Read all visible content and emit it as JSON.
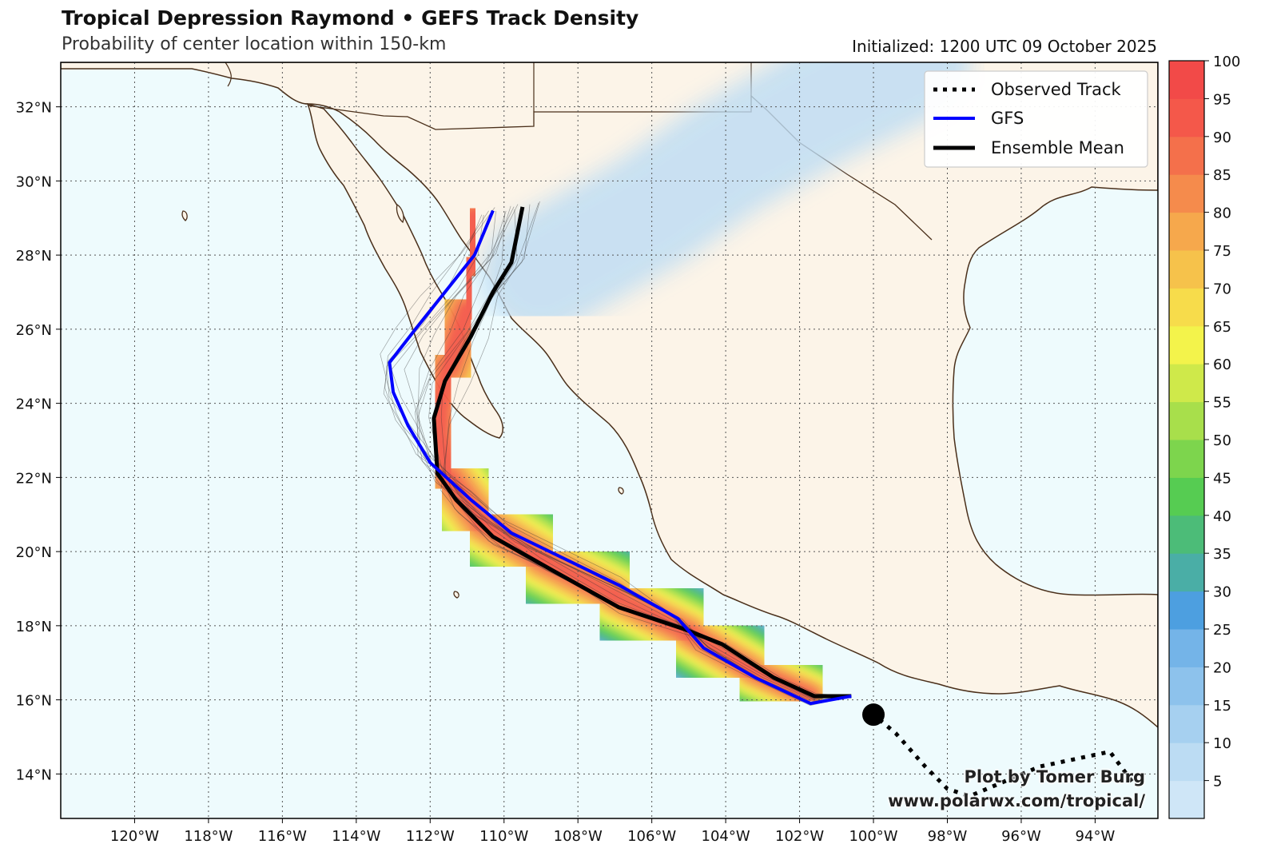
{
  "header": {
    "title": "Tropical Depression Raymond • GEFS Track Density",
    "subtitle": "Probability of center location within 150-km",
    "initialized": "Initialized: 1200 UTC 09 October 2025"
  },
  "credit": {
    "line1": "Plot by Tomer Burg",
    "line2": "www.polarwx.com/tropical/"
  },
  "map": {
    "lon_range": [
      -122,
      -92.3
    ],
    "lat_range": [
      12.8,
      33.2
    ],
    "lon_ticks": [
      {
        "value": -120,
        "label": "120°W"
      },
      {
        "value": -118,
        "label": "118°W"
      },
      {
        "value": -116,
        "label": "116°W"
      },
      {
        "value": -114,
        "label": "114°W"
      },
      {
        "value": -112,
        "label": "112°W"
      },
      {
        "value": -110,
        "label": "110°W"
      },
      {
        "value": -108,
        "label": "108°W"
      },
      {
        "value": -106,
        "label": "106°W"
      },
      {
        "value": -104,
        "label": "104°W"
      },
      {
        "value": -102,
        "label": "102°W"
      },
      {
        "value": -100,
        "label": "100°W"
      },
      {
        "value": -98,
        "label": "98°W"
      },
      {
        "value": -96,
        "label": "96°W"
      },
      {
        "value": -94,
        "label": "94°W"
      }
    ],
    "lat_ticks": [
      {
        "value": 14,
        "label": "14°N"
      },
      {
        "value": 16,
        "label": "16°N"
      },
      {
        "value": 18,
        "label": "18°N"
      },
      {
        "value": 20,
        "label": "20°N"
      },
      {
        "value": 22,
        "label": "22°N"
      },
      {
        "value": 24,
        "label": "24°N"
      },
      {
        "value": 26,
        "label": "26°N"
      },
      {
        "value": 28,
        "label": "28°N"
      },
      {
        "value": 30,
        "label": "30°N"
      },
      {
        "value": 32,
        "label": "32°N"
      }
    ],
    "colors": {
      "ocean": "#eefbfd",
      "land": "#fcf4e8",
      "coast": "#4a2f1a",
      "grid": "#555555"
    }
  },
  "legend": {
    "position": "top-right",
    "items": [
      {
        "label": "Observed Track",
        "color": "#000000",
        "style": "dotted"
      },
      {
        "label": "GFS",
        "color": "#0000ff",
        "style": "solid"
      },
      {
        "label": "Ensemble Mean",
        "color": "#000000",
        "style": "solid"
      }
    ]
  },
  "colorbar": {
    "ticks": [
      "5",
      "10",
      "15",
      "20",
      "25",
      "30",
      "35",
      "40",
      "45",
      "50",
      "55",
      "60",
      "65",
      "70",
      "75",
      "80",
      "85",
      "90",
      "95",
      "100"
    ],
    "colors": [
      "#cfe6f7",
      "#bcdcf3",
      "#a6d0f0",
      "#8dc2ec",
      "#74b4e8",
      "#4d9fe0",
      "#4aaea6",
      "#4cbc78",
      "#56cc52",
      "#7dd54d",
      "#a8df4b",
      "#cfe94a",
      "#f3f34b",
      "#f7dc4b",
      "#f6c24b",
      "#f6a84c",
      "#f58b4c",
      "#f4704b",
      "#f4584a",
      "#f24a48"
    ]
  },
  "chart_data": {
    "type": "map-track-density",
    "observed_track": [
      [
        -93.0,
        13.8
      ],
      [
        -93.6,
        14.6
      ],
      [
        -95.5,
        14.2
      ],
      [
        -97.4,
        13.4
      ],
      [
        -98.0,
        13.6
      ],
      [
        -98.6,
        14.2
      ],
      [
        -99.4,
        15.1
      ],
      [
        -100.0,
        15.6
      ]
    ],
    "current_position": [
      -100.0,
      15.6
    ],
    "gfs_track": [
      [
        -100.6,
        16.1
      ],
      [
        -101.7,
        15.9
      ],
      [
        -103.2,
        16.6
      ],
      [
        -104.6,
        17.4
      ],
      [
        -105.3,
        18.2
      ],
      [
        -106.9,
        19.1
      ],
      [
        -109.8,
        20.5
      ],
      [
        -110.9,
        21.4
      ],
      [
        -112.0,
        22.4
      ],
      [
        -112.6,
        23.4
      ],
      [
        -113.0,
        24.3
      ],
      [
        -113.1,
        25.1
      ],
      [
        -112.4,
        26.0
      ],
      [
        -111.6,
        27.0
      ],
      [
        -110.8,
        28.0
      ],
      [
        -110.3,
        29.2
      ]
    ],
    "ensemble_mean_track": [
      [
        -100.6,
        16.1
      ],
      [
        -101.6,
        16.1
      ],
      [
        -102.7,
        16.6
      ],
      [
        -104.1,
        17.5
      ],
      [
        -105.1,
        17.9
      ],
      [
        -106.9,
        18.5
      ],
      [
        -108.7,
        19.5
      ],
      [
        -110.3,
        20.4
      ],
      [
        -111.3,
        21.4
      ],
      [
        -111.8,
        22.1
      ],
      [
        -111.9,
        23.6
      ],
      [
        -111.6,
        24.6
      ],
      [
        -110.9,
        25.8
      ],
      [
        -110.3,
        27.0
      ],
      [
        -109.8,
        27.8
      ],
      [
        -109.5,
        29.3
      ]
    ],
    "density_centerline": [
      [
        -100.2,
        16.1
      ],
      [
        -101.7,
        16.1
      ],
      [
        -103.3,
        16.8
      ],
      [
        -105.0,
        17.8
      ],
      [
        -107.0,
        18.8
      ],
      [
        -109.0,
        19.8
      ],
      [
        -110.6,
        20.8
      ],
      [
        -111.5,
        22.0
      ],
      [
        -111.8,
        23.5
      ],
      [
        -111.5,
        25.0
      ],
      [
        -111.0,
        26.5
      ],
      [
        -110.9,
        27.7
      ],
      [
        -110.8,
        29.0
      ]
    ],
    "density_spread_deg": [
      0.2,
      0.3,
      0.4,
      0.5,
      0.6,
      0.7,
      0.8,
      0.9,
      1.0,
      1.1,
      1.2,
      1.3,
      1.4
    ],
    "density_levels": [
      5,
      15,
      25,
      35,
      45,
      55,
      65,
      75,
      85,
      95
    ],
    "outer_band": [
      [
        -109.0,
        27.5
      ],
      [
        -106.0,
        29.2
      ],
      [
        -104.0,
        30.6
      ],
      [
        -101.5,
        32.0
      ],
      [
        -99.0,
        33.2
      ]
    ]
  }
}
